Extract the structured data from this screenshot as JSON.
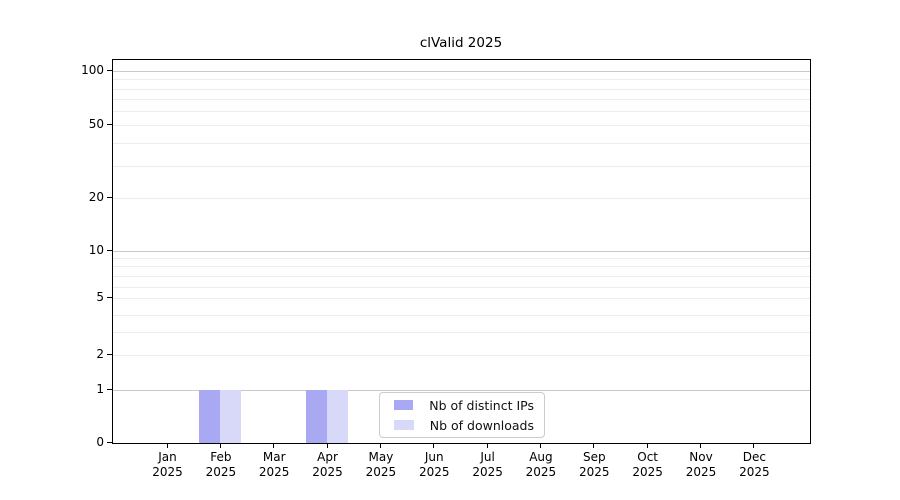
{
  "chart_data": {
    "type": "bar",
    "title": "clValid 2025",
    "categories": [
      "Jan 2025",
      "Feb 2025",
      "Mar 2025",
      "Apr 2025",
      "May 2025",
      "Jun 2025",
      "Jul 2025",
      "Aug 2025",
      "Sep 2025",
      "Oct 2025",
      "Nov 2025",
      "Dec 2025"
    ],
    "series": [
      {
        "name": "Nb of distinct IPs",
        "color": "#a8a8f3",
        "values": [
          0,
          1,
          0,
          1,
          0,
          0,
          0,
          0,
          0,
          0,
          0,
          0
        ]
      },
      {
        "name": "Nb of downloads",
        "color": "#d8d8f8",
        "values": [
          0,
          1,
          0,
          1,
          0,
          0,
          0,
          0,
          0,
          0,
          0,
          0
        ]
      }
    ],
    "y_scale": "log1p",
    "ylim": [
      0,
      130
    ],
    "y_ticks": [
      0,
      1,
      2,
      5,
      10,
      20,
      50,
      100
    ],
    "y_minor_ticks": [
      3,
      4,
      6,
      7,
      8,
      9,
      30,
      40,
      60,
      70,
      80,
      90
    ],
    "grid": true,
    "legend_position": "inside-bottom-center",
    "colors": {
      "axis": "#000000",
      "major_grid": "#c9c9c9",
      "minor_grid": "#ececec",
      "background": "#ffffff"
    },
    "xlabel": "",
    "ylabel": ""
  }
}
